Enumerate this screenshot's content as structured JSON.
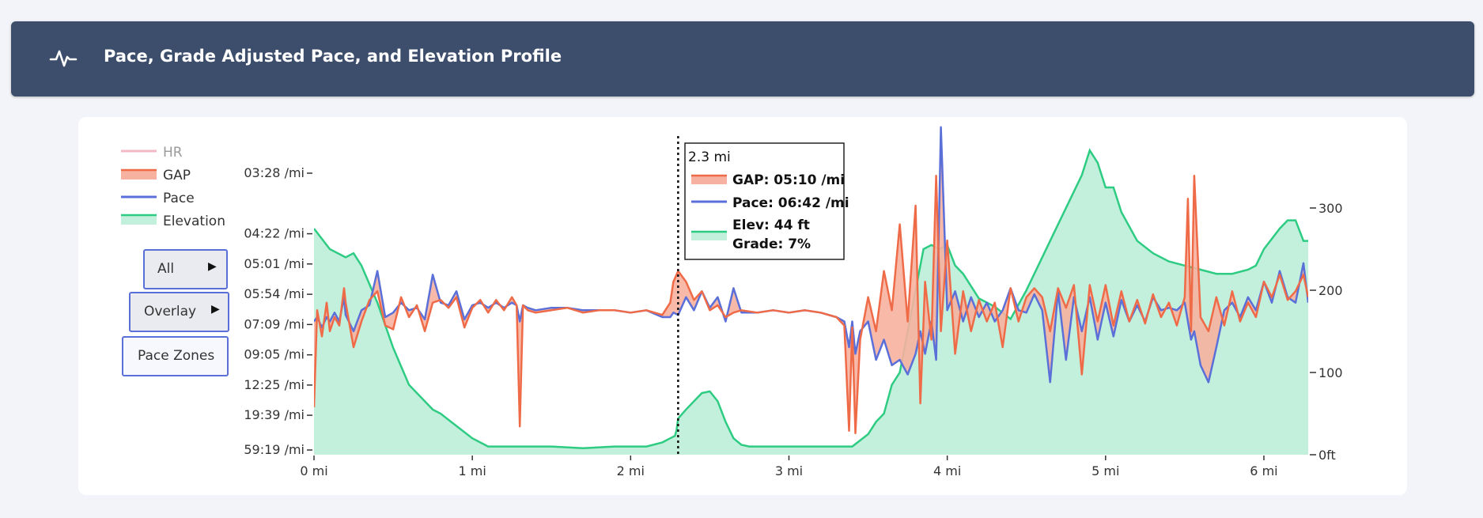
{
  "header": {
    "title": "Pace, Grade Adjusted Pace, and Elevation Profile",
    "icon": "activity-pulse-icon"
  },
  "buttons": {
    "all": "All",
    "overlay": "Overlay",
    "pace_zones": "Pace Zones"
  },
  "colors": {
    "hr": "#f4b8c4",
    "gap": "#ef6b48",
    "gap_fill": "#f7b1a0",
    "pace": "#5a6fd8",
    "elevation": "#2ecc82",
    "elevation_fill": "#c3f0dc",
    "header_bg": "#3c4e6b"
  },
  "tooltip": {
    "title": "2.3 mi",
    "gap": "GAP: 05:10 /mi",
    "pace": "Pace: 06:42 /mi",
    "elev": "Elev: 44 ft",
    "grade": "Grade: 7%"
  },
  "chart_data": {
    "type": "line",
    "x_unit": "mi",
    "x_range": [
      0,
      6.28
    ],
    "x_ticks": [
      "0 mi",
      "1 mi",
      "2 mi",
      "3 mi",
      "4 mi",
      "5 mi",
      "6 mi"
    ],
    "pace_axis_ticks": [
      "03:28 /mi",
      "04:22 /mi",
      "05:01 /mi",
      "05:54 /mi",
      "07:09 /mi",
      "09:05 /mi",
      "12:25 /mi",
      "19:39 /mi",
      "59:19 /mi"
    ],
    "elevation_axis_ticks": [
      "300",
      "200",
      "100",
      "0ft"
    ],
    "elevation_range_ft": [
      0,
      320
    ],
    "hover_x_mi": 2.3,
    "legend": [
      "HR",
      "GAP",
      "Pace",
      "Elevation"
    ],
    "series": [
      {
        "name": "Elevation",
        "unit": "ft",
        "x": [
          0,
          0.1,
          0.2,
          0.25,
          0.3,
          0.4,
          0.5,
          0.6,
          0.7,
          0.75,
          0.8,
          0.9,
          1.0,
          1.1,
          1.2,
          1.3,
          1.5,
          1.7,
          1.9,
          2.0,
          2.1,
          2.2,
          2.25,
          2.28,
          2.29,
          2.3,
          2.35,
          2.4,
          2.45,
          2.5,
          2.55,
          2.6,
          2.65,
          2.7,
          2.75,
          2.8,
          2.9,
          3.0,
          3.1,
          3.2,
          3.3,
          3.4,
          3.5,
          3.55,
          3.6,
          3.65,
          3.7,
          3.8,
          3.85,
          3.9,
          3.95,
          4.0,
          4.05,
          4.1,
          4.2,
          4.3,
          4.4,
          4.5,
          4.6,
          4.7,
          4.8,
          4.85,
          4.9,
          4.95,
          5.0,
          5.05,
          5.1,
          5.2,
          5.3,
          5.4,
          5.5,
          5.6,
          5.7,
          5.8,
          5.9,
          5.95,
          6.0,
          6.1,
          6.15,
          6.2,
          6.25,
          6.28
        ],
        "y": [
          275,
          250,
          240,
          245,
          230,
          185,
          130,
          85,
          65,
          55,
          50,
          35,
          20,
          10,
          10,
          10,
          10,
          8,
          10,
          10,
          10,
          15,
          20,
          23,
          30,
          44,
          55,
          65,
          75,
          77,
          65,
          40,
          20,
          12,
          10,
          10,
          10,
          10,
          10,
          10,
          10,
          10,
          25,
          40,
          50,
          85,
          100,
          200,
          250,
          255,
          250,
          255,
          230,
          220,
          190,
          180,
          165,
          200,
          240,
          280,
          320,
          340,
          370,
          355,
          325,
          325,
          295,
          260,
          245,
          235,
          230,
          225,
          220,
          220,
          225,
          230,
          250,
          275,
          285,
          285,
          260,
          260
        ]
      },
      {
        "name": "GAP",
        "unit": "min/mi",
        "x": [
          0,
          0.02,
          0.05,
          0.08,
          0.1,
          0.13,
          0.16,
          0.19,
          0.2,
          0.25,
          0.3,
          0.35,
          0.4,
          0.45,
          0.5,
          0.55,
          0.6,
          0.65,
          0.7,
          0.75,
          0.8,
          0.85,
          0.9,
          0.95,
          1.0,
          1.05,
          1.1,
          1.15,
          1.2,
          1.25,
          1.28,
          1.3,
          1.32,
          1.35,
          1.4,
          1.5,
          1.6,
          1.7,
          1.8,
          1.9,
          2.0,
          2.1,
          2.2,
          2.25,
          2.27,
          2.3,
          2.35,
          2.4,
          2.45,
          2.5,
          2.55,
          2.6,
          2.65,
          2.7,
          2.8,
          2.9,
          3.0,
          3.1,
          3.2,
          3.3,
          3.35,
          3.38,
          3.4,
          3.42,
          3.45,
          3.5,
          3.55,
          3.6,
          3.65,
          3.7,
          3.75,
          3.8,
          3.83,
          3.86,
          3.9,
          3.93,
          3.96,
          4.0,
          4.05,
          4.1,
          4.15,
          4.2,
          4.25,
          4.3,
          4.35,
          4.4,
          4.45,
          4.5,
          4.55,
          4.6,
          4.65,
          4.7,
          4.75,
          4.8,
          4.85,
          4.9,
          4.95,
          5.0,
          5.05,
          5.1,
          5.15,
          5.2,
          5.25,
          5.3,
          5.35,
          5.4,
          5.45,
          5.5,
          5.52,
          5.54,
          5.56,
          5.6,
          5.65,
          5.7,
          5.75,
          5.8,
          5.85,
          5.9,
          5.95,
          6.0,
          6.05,
          6.1,
          6.15,
          6.2,
          6.25,
          6.28
        ],
        "y": [
          17,
          6.5,
          7.8,
          6.2,
          7.5,
          6.8,
          7.2,
          5.7,
          6.2,
          8.5,
          7.0,
          6.1,
          5.8,
          7.2,
          7.4,
          6.0,
          6.8,
          6.3,
          7.5,
          6.2,
          6.1,
          6.4,
          6.0,
          7.3,
          6.4,
          6.1,
          6.6,
          6.1,
          6.5,
          6.0,
          6.3,
          25,
          6.3,
          6.5,
          6.6,
          6.5,
          6.4,
          6.6,
          6.5,
          6.5,
          6.6,
          6.5,
          6.7,
          6.2,
          5.5,
          5.2,
          5.5,
          6.1,
          5.8,
          6.5,
          6.3,
          6.8,
          6.6,
          6.5,
          6.6,
          6.5,
          6.6,
          6.5,
          6.6,
          6.8,
          7.2,
          28,
          7.3,
          30,
          8.0,
          6.0,
          7.5,
          5.2,
          6.5,
          4.2,
          7.0,
          3.9,
          16,
          5.5,
          8.0,
          3.5,
          7.5,
          4.5,
          9.0,
          5.8,
          7.5,
          6.1,
          7.0,
          6.2,
          8.5,
          5.7,
          7.0,
          6.0,
          5.7,
          6.0,
          7.5,
          5.7,
          6.4,
          5.6,
          11,
          5.6,
          7.0,
          5.6,
          7.2,
          5.8,
          7.0,
          6.1,
          7.1,
          5.9,
          6.8,
          6.2,
          7.2,
          6.0,
          3.8,
          7.5,
          3.5,
          6.8,
          7.5,
          6.0,
          7.2,
          5.8,
          7.0,
          6.2,
          6.8,
          5.5,
          6.0,
          5.3,
          6.1,
          5.8,
          5.3,
          6.0
        ]
      },
      {
        "name": "Pace",
        "unit": "min/mi",
        "x": [
          0,
          0.02,
          0.05,
          0.08,
          0.1,
          0.13,
          0.16,
          0.19,
          0.2,
          0.25,
          0.3,
          0.35,
          0.4,
          0.45,
          0.5,
          0.55,
          0.6,
          0.65,
          0.7,
          0.75,
          0.8,
          0.85,
          0.9,
          0.95,
          1.0,
          1.05,
          1.1,
          1.15,
          1.2,
          1.25,
          1.28,
          1.3,
          1.32,
          1.35,
          1.4,
          1.5,
          1.6,
          1.7,
          1.8,
          1.9,
          2.0,
          2.1,
          2.2,
          2.25,
          2.27,
          2.3,
          2.35,
          2.4,
          2.45,
          2.5,
          2.55,
          2.6,
          2.65,
          2.7,
          2.8,
          2.9,
          3.0,
          3.1,
          3.2,
          3.3,
          3.35,
          3.38,
          3.4,
          3.42,
          3.45,
          3.5,
          3.55,
          3.6,
          3.65,
          3.7,
          3.75,
          3.8,
          3.83,
          3.86,
          3.9,
          3.93,
          3.96,
          4.0,
          4.05,
          4.1,
          4.15,
          4.2,
          4.25,
          4.3,
          4.35,
          4.4,
          4.45,
          4.5,
          4.55,
          4.6,
          4.65,
          4.7,
          4.75,
          4.8,
          4.85,
          4.9,
          4.95,
          5.0,
          5.05,
          5.1,
          5.15,
          5.2,
          5.25,
          5.3,
          5.35,
          5.4,
          5.45,
          5.5,
          5.52,
          5.54,
          5.56,
          5.6,
          5.65,
          5.7,
          5.75,
          5.8,
          5.85,
          5.9,
          5.95,
          6.0,
          6.05,
          6.1,
          6.15,
          6.2,
          6.25,
          6.28
        ],
        "y": [
          7.0,
          6.8,
          7.3,
          6.8,
          7.0,
          6.6,
          7.0,
          6.0,
          6.7,
          7.5,
          6.5,
          6.3,
          5.2,
          6.8,
          6.6,
          6.2,
          6.5,
          6.4,
          6.9,
          5.3,
          6.2,
          6.3,
          5.8,
          6.9,
          6.3,
          6.2,
          6.4,
          6.2,
          6.4,
          6.2,
          6.3,
          7.0,
          6.3,
          6.4,
          6.5,
          6.4,
          6.4,
          6.5,
          6.5,
          6.5,
          6.6,
          6.5,
          6.8,
          6.8,
          6.6,
          6.7,
          6.0,
          6.5,
          5.8,
          6.4,
          6.0,
          7.0,
          5.7,
          6.6,
          6.6,
          6.5,
          6.6,
          6.5,
          6.6,
          6.8,
          7.0,
          8.5,
          7.0,
          9.0,
          7.5,
          7.0,
          9.5,
          8.0,
          10,
          9.5,
          11,
          9.0,
          7.5,
          9.0,
          7.0,
          9.5,
          3.0,
          6.5,
          5.8,
          7.0,
          6.0,
          6.8,
          6.2,
          7.0,
          6.5,
          5.7,
          6.5,
          6.6,
          5.9,
          6.5,
          12,
          5.8,
          9.5,
          6.0,
          7.5,
          6.0,
          8.0,
          6.2,
          7.8,
          6.1,
          7.0,
          6.3,
          7.0,
          6.0,
          6.5,
          6.4,
          6.5,
          6.2,
          7.0,
          8.0,
          7.5,
          10,
          12,
          8.5,
          6.5,
          6.2,
          6.8,
          6.0,
          6.5,
          5.5,
          6.2,
          5.2,
          6.0,
          6.2,
          5.0,
          6.2
        ]
      }
    ]
  }
}
